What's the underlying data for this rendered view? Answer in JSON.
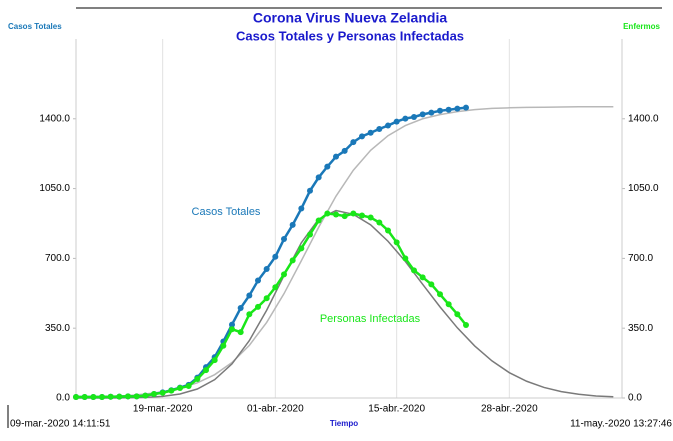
{
  "chart_data": {
    "type": "line",
    "title": "Corona Virus Nueva Zelandia",
    "subtitle": "Casos Totales y Personas Infectadas",
    "y_label": "Casos Totales",
    "y2_label": "Enfermos",
    "x_label": "Tiempo",
    "start_label": "09-mar.-2020 14:11:51",
    "end_label": "11-may.-2020 13:27:46",
    "xlim": [
      "2020-03-09",
      "2020-05-11"
    ],
    "xticks": [
      {
        "value": "2020-03-19",
        "label": "19-mar.-2020"
      },
      {
        "value": "2020-04-01",
        "label": "01-abr.-2020"
      },
      {
        "value": "2020-04-15",
        "label": "15-abr.-2020"
      },
      {
        "value": "2020-04-28",
        "label": "28-abr.-2020"
      }
    ],
    "ylim": [
      0,
      1800
    ],
    "yticks": [
      {
        "value": 0,
        "label": "0.0"
      },
      {
        "value": 350,
        "label": "350.0"
      },
      {
        "value": 700,
        "label": "700.0"
      },
      {
        "value": 1050,
        "label": "1050.0"
      },
      {
        "value": 1400,
        "label": "1400.0"
      }
    ],
    "y2lim": [
      0,
      1800
    ],
    "y2ticks": [
      {
        "value": 0,
        "label": "0.0"
      },
      {
        "value": 350,
        "label": "350.0"
      },
      {
        "value": 700,
        "label": "700.0"
      },
      {
        "value": 1050,
        "label": "1050.0"
      },
      {
        "value": 1400,
        "label": "1400.0"
      }
    ],
    "grid": true,
    "series": [
      {
        "color": "#b8b8b8",
        "x": [
          "2020-03-09",
          "2020-03-11",
          "2020-03-13",
          "2020-03-15",
          "2020-03-17",
          "2020-03-19",
          "2020-03-21",
          "2020-03-23",
          "2020-03-25",
          "2020-03-27",
          "2020-03-29",
          "2020-03-31",
          "2020-04-02",
          "2020-04-04",
          "2020-04-06",
          "2020-04-08",
          "2020-04-10",
          "2020-04-12",
          "2020-04-14",
          "2020-04-16",
          "2020-04-18",
          "2020-04-20",
          "2020-04-22",
          "2020-04-24",
          "2020-04-26",
          "2020-04-28",
          "2020-04-30",
          "2020-05-02",
          "2020-05-04",
          "2020-05-06",
          "2020-05-08",
          "2020-05-10"
        ],
        "values": [
          3,
          5,
          8,
          12,
          20,
          31,
          49,
          76,
          117,
          178,
          264,
          379,
          523,
          688,
          856,
          1012,
          1142,
          1242,
          1315,
          1366,
          1400,
          1421,
          1436,
          1446,
          1452,
          1455,
          1457,
          1458,
          1459,
          1460,
          1460,
          1460
        ]
      },
      {
        "color": "#7a7a7a",
        "x": [
          "2020-03-09",
          "2020-03-11",
          "2020-03-13",
          "2020-03-15",
          "2020-03-17",
          "2020-03-19",
          "2020-03-21",
          "2020-03-23",
          "2020-03-25",
          "2020-03-27",
          "2020-03-29",
          "2020-03-31",
          "2020-04-02",
          "2020-04-04",
          "2020-04-06",
          "2020-04-08",
          "2020-04-10",
          "2020-04-12",
          "2020-04-14",
          "2020-04-16",
          "2020-04-18",
          "2020-04-20",
          "2020-04-22",
          "2020-04-24",
          "2020-04-26",
          "2020-04-28",
          "2020-04-30",
          "2020-05-02",
          "2020-05-04",
          "2020-05-06",
          "2020-05-08",
          "2020-05-10"
        ],
        "values": [
          0,
          0,
          0,
          1,
          3,
          8,
          20,
          45,
          92,
          171,
          288,
          440,
          614,
          778,
          897,
          940,
          921,
          868,
          786,
          685,
          570,
          457,
          352,
          261,
          186,
          127,
          84,
          53,
          32,
          19,
          10,
          6
        ]
      },
      {
        "name": "Casos Totales",
        "color": "#1a78b8",
        "markers": true,
        "x": [
          "2020-03-09",
          "2020-03-10",
          "2020-03-11",
          "2020-03-12",
          "2020-03-13",
          "2020-03-14",
          "2020-03-15",
          "2020-03-16",
          "2020-03-17",
          "2020-03-18",
          "2020-03-19",
          "2020-03-20",
          "2020-03-21",
          "2020-03-22",
          "2020-03-23",
          "2020-03-24",
          "2020-03-25",
          "2020-03-26",
          "2020-03-27",
          "2020-03-28",
          "2020-03-29",
          "2020-03-30",
          "2020-03-31",
          "2020-04-01",
          "2020-04-02",
          "2020-04-03",
          "2020-04-04",
          "2020-04-05",
          "2020-04-06",
          "2020-04-07",
          "2020-04-08",
          "2020-04-09",
          "2020-04-10",
          "2020-04-11",
          "2020-04-12",
          "2020-04-13",
          "2020-04-14",
          "2020-04-15",
          "2020-04-16",
          "2020-04-17",
          "2020-04-18",
          "2020-04-19",
          "2020-04-20",
          "2020-04-21",
          "2020-04-22",
          "2020-04-23"
        ],
        "values": [
          5,
          5,
          5,
          5,
          6,
          7,
          8,
          8,
          12,
          20,
          28,
          39,
          52,
          66,
          102,
          155,
          205,
          283,
          368,
          451,
          514,
          589,
          647,
          708,
          797,
          868,
          950,
          1039,
          1106,
          1160,
          1210,
          1239,
          1283,
          1312,
          1330,
          1349,
          1366,
          1386,
          1401,
          1409,
          1422,
          1431,
          1440,
          1445,
          1451,
          1456
        ]
      },
      {
        "name": "Personas Infectadas",
        "color": "#19e619",
        "markers": true,
        "x": [
          "2020-03-09",
          "2020-03-10",
          "2020-03-11",
          "2020-03-12",
          "2020-03-13",
          "2020-03-14",
          "2020-03-15",
          "2020-03-16",
          "2020-03-17",
          "2020-03-18",
          "2020-03-19",
          "2020-03-20",
          "2020-03-21",
          "2020-03-22",
          "2020-03-23",
          "2020-03-24",
          "2020-03-25",
          "2020-03-26",
          "2020-03-27",
          "2020-03-28",
          "2020-03-29",
          "2020-03-30",
          "2020-03-31",
          "2020-04-01",
          "2020-04-02",
          "2020-04-03",
          "2020-04-04",
          "2020-04-05",
          "2020-04-06",
          "2020-04-07",
          "2020-04-08",
          "2020-04-09",
          "2020-04-10",
          "2020-04-11",
          "2020-04-12",
          "2020-04-13",
          "2020-04-14",
          "2020-04-15",
          "2020-04-16",
          "2020-04-17",
          "2020-04-18",
          "2020-04-19",
          "2020-04-20",
          "2020-04-21",
          "2020-04-22",
          "2020-04-23"
        ],
        "values": [
          5,
          5,
          5,
          5,
          6,
          7,
          8,
          8,
          12,
          20,
          26,
          37,
          50,
          60,
          95,
          140,
          190,
          262,
          345,
          330,
          420,
          457,
          500,
          555,
          620,
          690,
          750,
          820,
          890,
          925,
          920,
          912,
          925,
          915,
          905,
          880,
          840,
          780,
          700,
          640,
          605,
          570,
          520,
          470,
          420,
          366
        ]
      }
    ]
  }
}
